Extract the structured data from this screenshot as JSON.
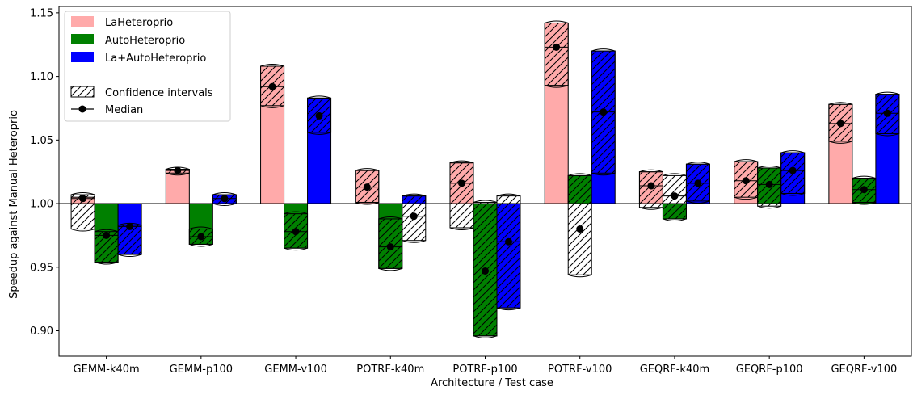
{
  "chart_data": {
    "type": "bar",
    "xlabel": "Architecture / Test case",
    "ylabel": "Speedup against Manual Heteroprio",
    "ylim": [
      0.88,
      1.155
    ],
    "baseline": 1.0,
    "yticks": [
      0.9,
      0.95,
      1.0,
      1.05,
      1.1,
      1.15
    ],
    "ytick_labels": [
      "0.90",
      "0.95",
      "1.00",
      "1.05",
      "1.10",
      "1.15"
    ],
    "categories": [
      "GEMM-k40m",
      "GEMM-p100",
      "GEMM-v100",
      "POTRF-k40m",
      "POTRF-p100",
      "POTRF-v100",
      "GEQRF-k40m",
      "GEQRF-p100",
      "GEQRF-v100"
    ],
    "legend_position": "top-left",
    "series": [
      {
        "name": "LaHeteroprio",
        "color": "#ffaaaa",
        "bar": [
          1.005,
          1.027,
          1.108,
          1.026,
          1.032,
          1.142,
          1.025,
          1.033,
          1.078
        ],
        "ci_low": [
          0.98,
          1.024,
          1.077,
          1.001,
          0.981,
          1.093,
          0.997,
          1.005,
          1.049
        ],
        "ci_high": [
          1.007,
          1.027,
          1.108,
          1.026,
          1.032,
          1.142,
          1.025,
          1.033,
          1.078
        ],
        "median": [
          1.004,
          1.026,
          1.092,
          1.013,
          1.016,
          1.123,
          1.014,
          1.018,
          1.063
        ]
      },
      {
        "name": "AutoHeteroprio",
        "color": "#008000",
        "bar": [
          0.954,
          0.968,
          0.965,
          0.949,
          0.896,
          1.022,
          0.988,
          1.028,
          1.02
        ],
        "ci_low": [
          0.954,
          0.968,
          0.965,
          0.949,
          0.896,
          0.944,
          0.988,
          0.998,
          1.001
        ],
        "ci_high": [
          0.978,
          0.98,
          0.992,
          0.988,
          1.001,
          1.022,
          1.022,
          1.028,
          1.02
        ],
        "median": [
          0.975,
          0.974,
          0.978,
          0.966,
          0.947,
          0.98,
          1.006,
          1.015,
          1.011
        ]
      },
      {
        "name": "La+AutoHeteroprio",
        "color": "#0000ff",
        "bar": [
          0.96,
          1.007,
          1.083,
          1.006,
          0.918,
          1.12,
          1.031,
          1.04,
          1.086
        ],
        "ci_low": [
          0.96,
          1.0,
          1.056,
          0.971,
          0.918,
          1.024,
          1.002,
          1.008,
          1.055
        ],
        "ci_high": [
          0.983,
          1.007,
          1.083,
          1.006,
          1.006,
          1.12,
          1.031,
          1.04,
          1.086
        ],
        "median": [
          0.982,
          1.004,
          1.069,
          0.99,
          0.97,
          1.072,
          1.016,
          1.026,
          1.071
        ]
      }
    ],
    "legend_extra": [
      "Confidence intervals",
      "Median"
    ]
  }
}
